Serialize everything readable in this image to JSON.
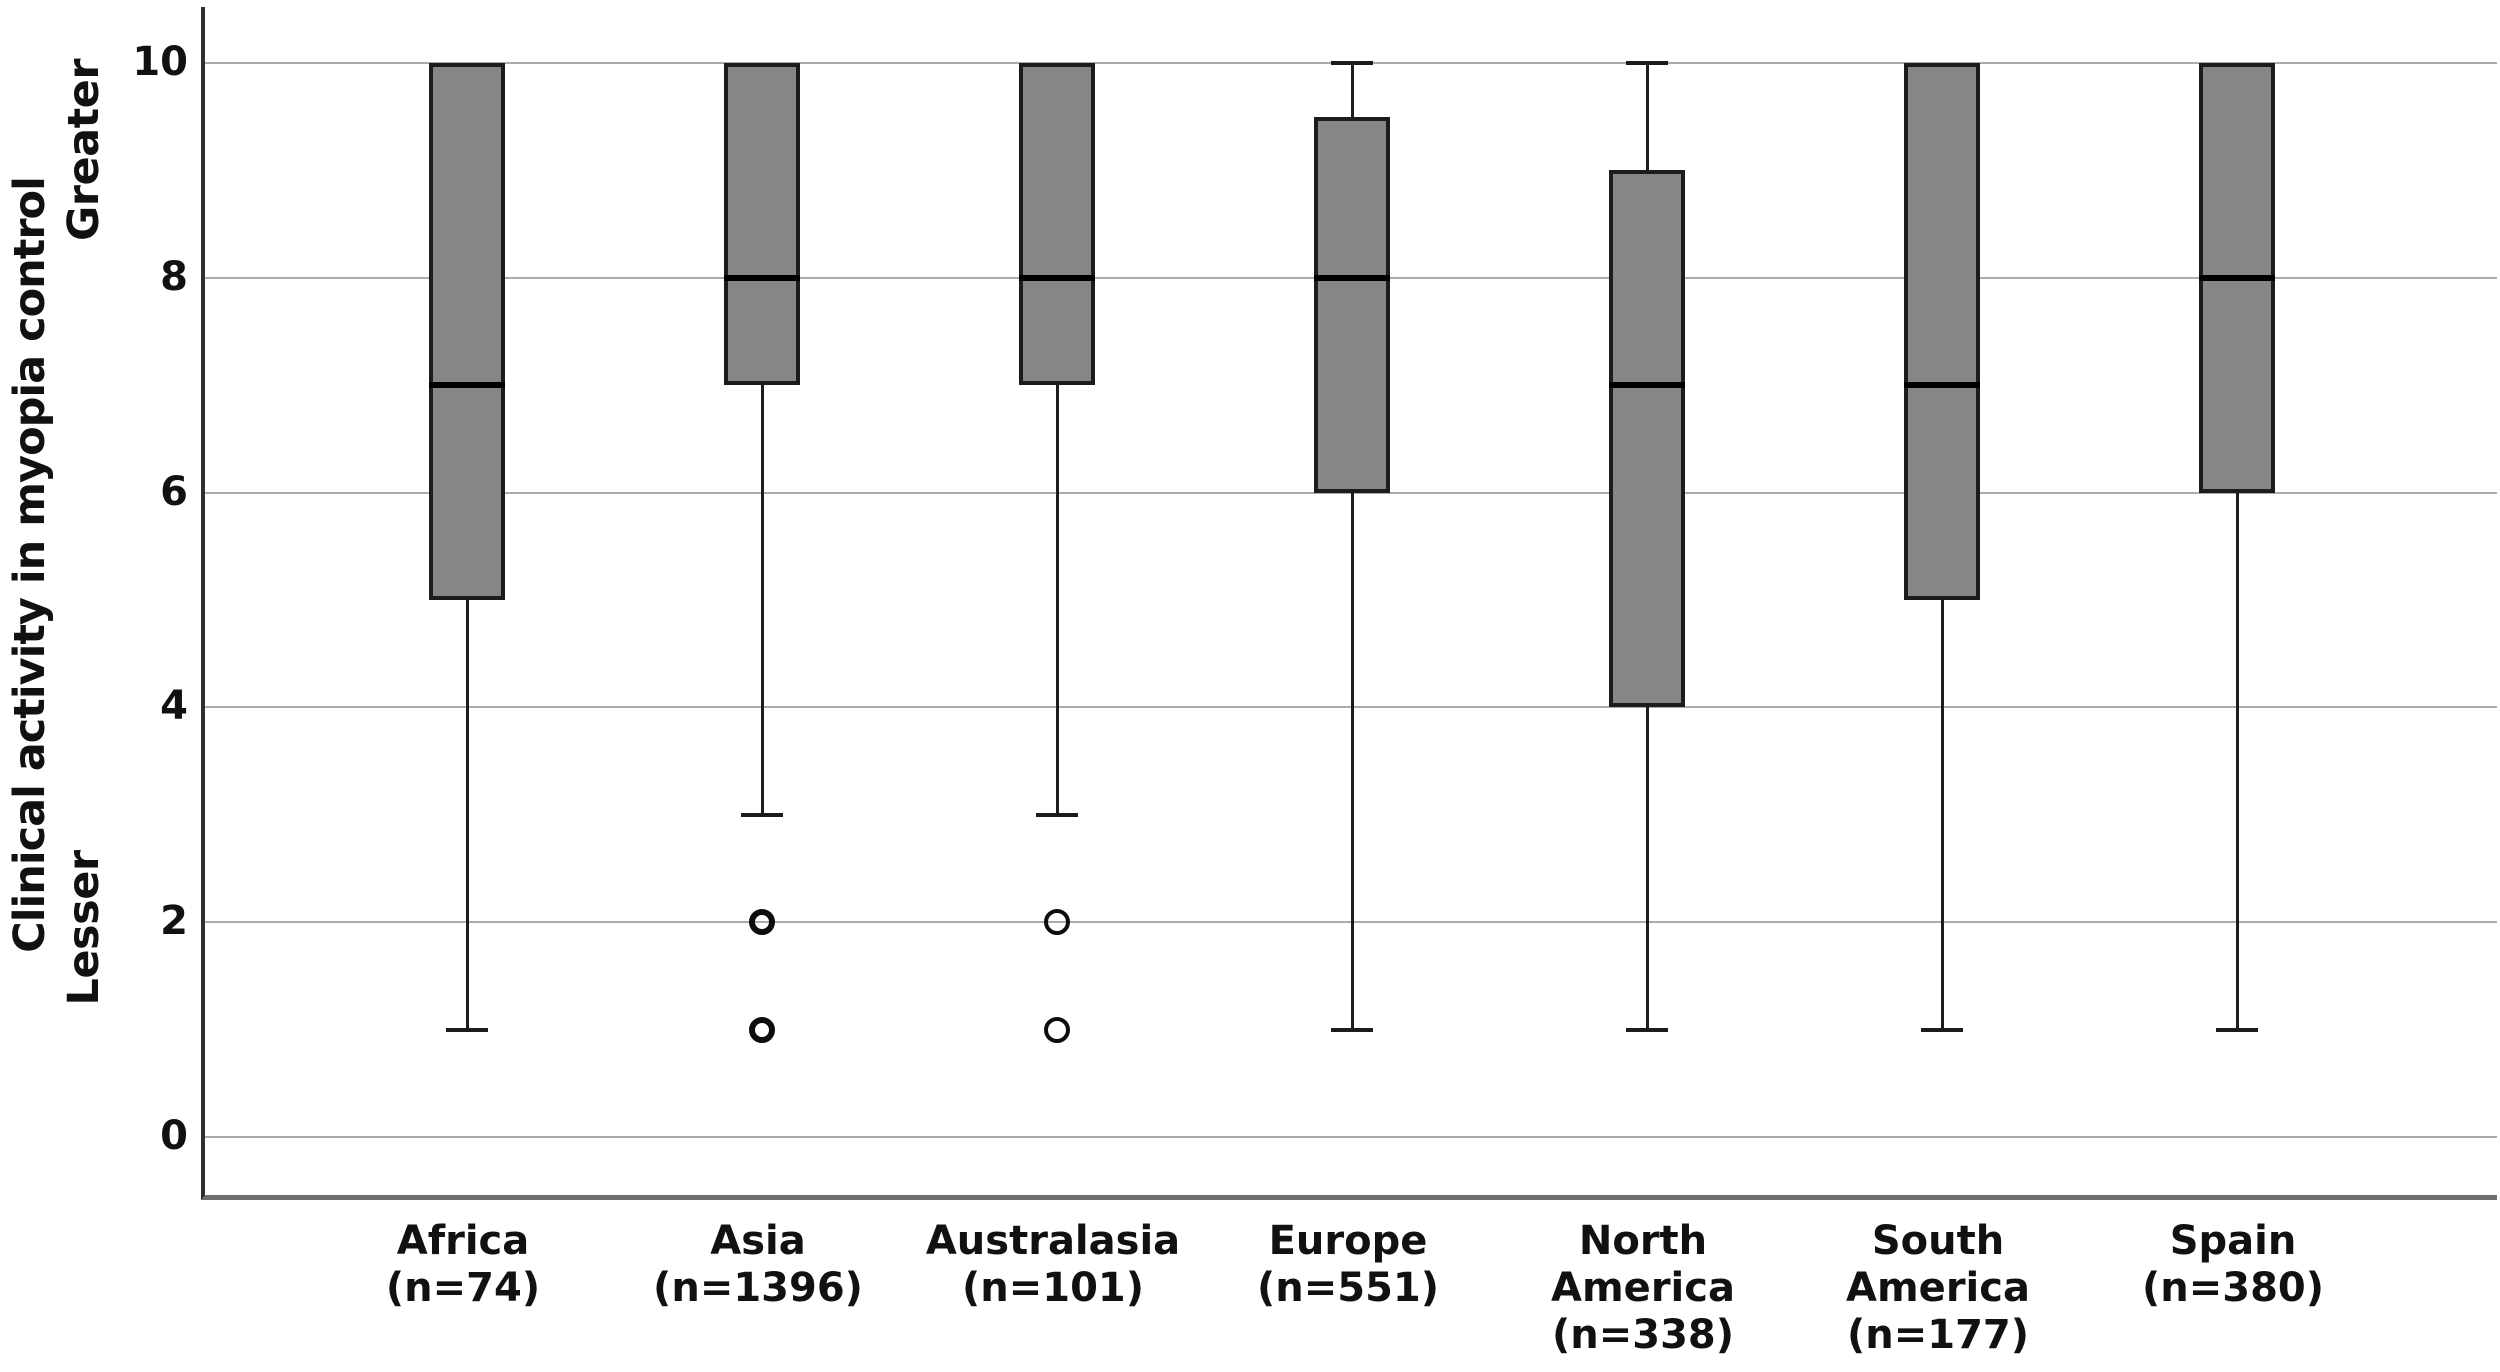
{
  "figure": {
    "background": "#ffffff",
    "y_axis_label": "Clinical activity in myopia control",
    "y_axis_top_annotation": "Greater",
    "y_axis_bottom_annotation": "Lesser"
  },
  "chart_data": {
    "type": "box",
    "title": "",
    "xlabel": "",
    "ylabel": "Clinical activity in myopia control",
    "ylabel_annotations": {
      "top": "Greater",
      "bottom": "Lesser"
    },
    "ylim": [
      -0.55,
      10.7
    ],
    "yticks": [
      0,
      2,
      4,
      6,
      8,
      10
    ],
    "grid": true,
    "gridline_color": "#ababab",
    "box_fill_color": "#868686",
    "box_border_color": "#1c1c1c",
    "median_color": "#000000",
    "categories": [
      "Africa",
      "Asia",
      "Australasia",
      "Europe",
      "North America",
      "South America",
      "Spain"
    ],
    "series": [
      {
        "category": "Africa",
        "n": 74,
        "label_lines": [
          "Africa",
          "(n=74)"
        ],
        "whisker_low": 1,
        "q1": 5,
        "median": 7,
        "q3": 10,
        "whisker_high": 10,
        "upper_whisker_visible": false,
        "outliers": [],
        "outlier_style": "thin"
      },
      {
        "category": "Asia",
        "n": 1396,
        "label_lines": [
          "Asia",
          "(n=1396)"
        ],
        "whisker_low": 3,
        "q1": 7,
        "median": 8,
        "q3": 10,
        "whisker_high": 10,
        "upper_whisker_visible": false,
        "outliers": [
          2,
          1
        ],
        "outlier_style": "thick"
      },
      {
        "category": "Australasia",
        "n": 101,
        "label_lines": [
          "Australasia",
          "(n=101)"
        ],
        "whisker_low": 3,
        "q1": 7,
        "median": 8,
        "q3": 10,
        "whisker_high": 10,
        "upper_whisker_visible": false,
        "outliers": [
          2,
          1
        ],
        "outlier_style": "thin"
      },
      {
        "category": "Europe",
        "n": 551,
        "label_lines": [
          "Europe",
          "(n=551)"
        ],
        "whisker_low": 1,
        "q1": 6,
        "median": 8,
        "q3": 9.5,
        "whisker_high": 10,
        "upper_whisker_visible": true,
        "outliers": [],
        "outlier_style": "thin"
      },
      {
        "category": "North America",
        "n": 338,
        "label_lines": [
          "North",
          "America",
          "(n=338)"
        ],
        "whisker_low": 1,
        "q1": 4,
        "median": 7,
        "q3": 9,
        "whisker_high": 10,
        "upper_whisker_visible": true,
        "outliers": [],
        "outlier_style": "thin"
      },
      {
        "category": "South America",
        "n": 177,
        "label_lines": [
          "South",
          "America",
          "(n=177)"
        ],
        "whisker_low": 1,
        "q1": 5,
        "median": 7,
        "q3": 10,
        "whisker_high": 10,
        "upper_whisker_visible": false,
        "outliers": [],
        "outlier_style": "thin"
      },
      {
        "category": "Spain",
        "n": 380,
        "label_lines": [
          "Spain",
          "(n=380)"
        ],
        "whisker_low": 1,
        "q1": 6,
        "median": 8,
        "q3": 10,
        "whisker_high": 10,
        "upper_whisker_visible": false,
        "outliers": [],
        "outlier_style": "thin"
      }
    ]
  }
}
